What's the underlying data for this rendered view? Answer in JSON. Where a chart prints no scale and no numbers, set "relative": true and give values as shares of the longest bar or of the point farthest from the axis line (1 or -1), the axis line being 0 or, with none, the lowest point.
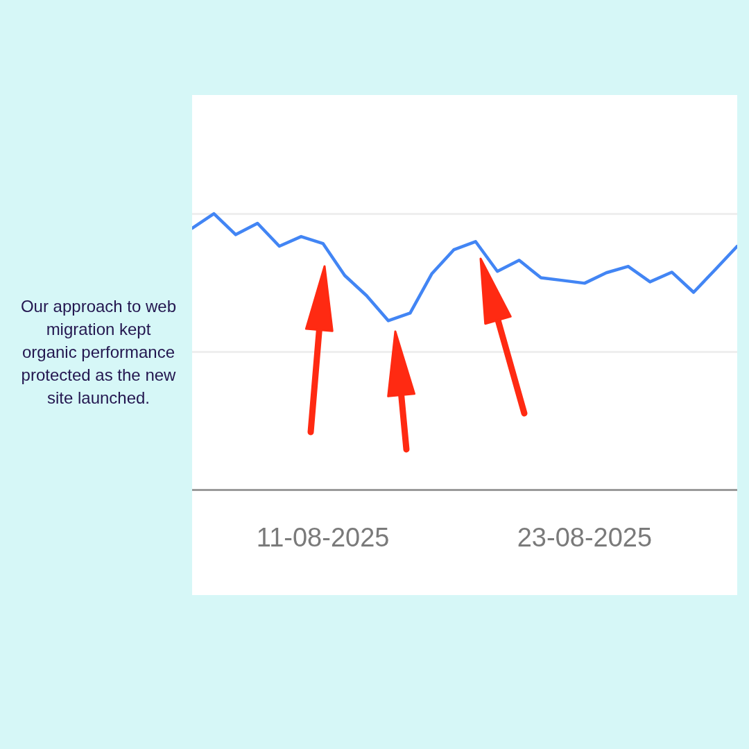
{
  "chart_data": {
    "type": "line",
    "annotations": [
      "Our approach to web migration kept organic performance protected as the new site launched."
    ],
    "x": [
      "2025-08-05",
      "2025-08-06",
      "2025-08-07",
      "2025-08-08",
      "2025-08-09",
      "2025-08-10",
      "2025-08-11",
      "2025-08-12",
      "2025-08-13",
      "2025-08-14",
      "2025-08-15",
      "2025-08-16",
      "2025-08-17",
      "2025-08-18",
      "2025-08-19",
      "2025-08-20",
      "2025-08-21",
      "2025-08-22",
      "2025-08-23",
      "2025-08-24",
      "2025-08-25",
      "2025-08-26",
      "2025-08-27",
      "2025-08-28",
      "2025-08-29",
      "2025-08-30"
    ],
    "series": [
      {
        "color": "#4285f4",
        "values": [
          0.947,
          1,
          0.924,
          0.965,
          0.882,
          0.917,
          0.892,
          0.776,
          0.703,
          0.612,
          0.64,
          0.783,
          0.869,
          0.899,
          0.791,
          0.831,
          0.768,
          0.758,
          0.748,
          0.786,
          0.809,
          0.753,
          0.788,
          0.715,
          0.798,
          0.882
        ]
      }
    ],
    "relative": true,
    "xlim": [
      "2025-08-05",
      "2025-08-30"
    ],
    "xticks": [
      {
        "value": "2025-08-11",
        "label": "11-08-2025"
      },
      {
        "value": "2025-08-23",
        "label": "23-08-2025"
      }
    ],
    "ref_lines": [
      {
        "axis": "y",
        "value": 0.5,
        "color": "#eeeeee"
      },
      {
        "axis": "y",
        "value": 1,
        "color": "#eeeeee"
      }
    ],
    "marker": "none",
    "line_style": "solid"
  }
}
